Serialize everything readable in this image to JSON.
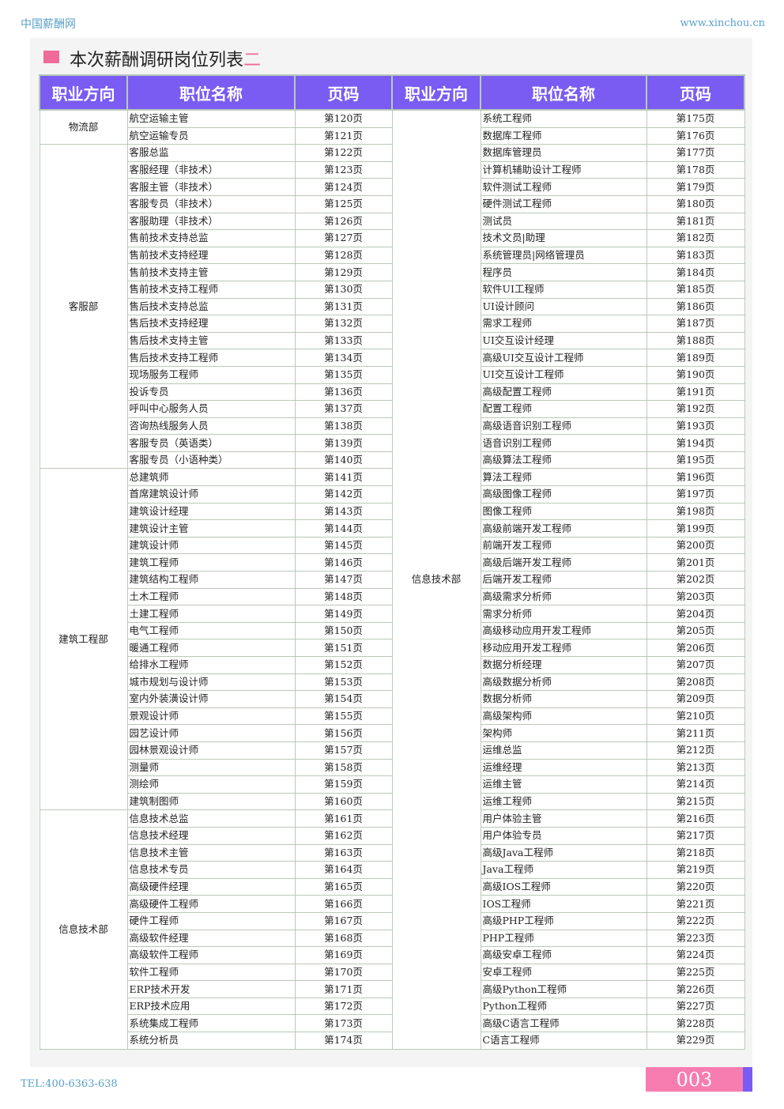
{
  "header": {
    "site": "中国薪酬网",
    "url": "www.xinchou.cn"
  },
  "title": {
    "text": "本次薪酬调研岗位列表",
    "suffix": "二"
  },
  "table": {
    "columns": [
      "职业方向",
      "职位名称",
      "页码",
      "职业方向",
      "职位名称",
      "页码"
    ],
    "left": [
      {
        "dept": "物流部",
        "rows": [
          [
            "航空运输主管",
            "第120页"
          ],
          [
            "航空运输专员",
            "第121页"
          ]
        ]
      },
      {
        "dept": "客服部",
        "rows": [
          [
            "客服总监",
            "第122页"
          ],
          [
            "客服经理（非技术）",
            "第123页"
          ],
          [
            "客服主管（非技术）",
            "第124页"
          ],
          [
            "客服专员（非技术）",
            "第125页"
          ],
          [
            "客服助理（非技术）",
            "第126页"
          ],
          [
            "售前技术支持总监",
            "第127页"
          ],
          [
            "售前技术支持经理",
            "第128页"
          ],
          [
            "售前技术支持主管",
            "第129页"
          ],
          [
            "售前技术支持工程师",
            "第130页"
          ],
          [
            "售后技术支持总监",
            "第131页"
          ],
          [
            "售后技术支持经理",
            "第132页"
          ],
          [
            "售后技术支持主管",
            "第133页"
          ],
          [
            "售后技术支持工程师",
            "第134页"
          ],
          [
            "现场服务工程师",
            "第135页"
          ],
          [
            "投诉专员",
            "第136页"
          ],
          [
            "呼叫中心服务人员",
            "第137页"
          ],
          [
            "咨询热线服务人员",
            "第138页"
          ],
          [
            "客服专员（英语类）",
            "第139页"
          ],
          [
            "客服专员（小语种类）",
            "第140页"
          ]
        ]
      },
      {
        "dept": "建筑工程部",
        "rows": [
          [
            "总建筑师",
            "第141页"
          ],
          [
            "首席建筑设计师",
            "第142页"
          ],
          [
            "建筑设计经理",
            "第143页"
          ],
          [
            "建筑设计主管",
            "第144页"
          ],
          [
            "建筑设计师",
            "第145页"
          ],
          [
            "建筑工程师",
            "第146页"
          ],
          [
            "建筑结构工程师",
            "第147页"
          ],
          [
            "土木工程师",
            "第148页"
          ],
          [
            "土建工程师",
            "第149页"
          ],
          [
            "电气工程师",
            "第150页"
          ],
          [
            "暖通工程师",
            "第151页"
          ],
          [
            "给排水工程师",
            "第152页"
          ],
          [
            "城市规划与设计师",
            "第153页"
          ],
          [
            "室内外装潢设计师",
            "第154页"
          ],
          [
            "景观设计师",
            "第155页"
          ],
          [
            "园艺设计师",
            "第156页"
          ],
          [
            "园林景观设计师",
            "第157页"
          ],
          [
            "测量师",
            "第158页"
          ],
          [
            "测绘师",
            "第159页"
          ],
          [
            "建筑制图师",
            "第160页"
          ]
        ]
      },
      {
        "dept": "信息技术部",
        "rows": [
          [
            "信息技术总监",
            "第161页"
          ],
          [
            "信息技术经理",
            "第162页"
          ],
          [
            "信息技术主管",
            "第163页"
          ],
          [
            "信息技术专员",
            "第164页"
          ],
          [
            "高级硬件经理",
            "第165页"
          ],
          [
            "高级硬件工程师",
            "第166页"
          ],
          [
            "硬件工程师",
            "第167页"
          ],
          [
            "高级软件经理",
            "第168页"
          ],
          [
            "高级软件工程师",
            "第169页"
          ],
          [
            "软件工程师",
            "第170页"
          ],
          [
            "ERP技术开发",
            "第171页"
          ],
          [
            "ERP技术应用",
            "第172页"
          ],
          [
            "系统集成工程师",
            "第173页"
          ],
          [
            "系统分析员",
            "第174页"
          ]
        ]
      }
    ],
    "right": [
      {
        "dept": "信息技术部",
        "rows": [
          [
            "系统工程师",
            "第175页"
          ],
          [
            "数据库工程师",
            "第176页"
          ],
          [
            "数据库管理员",
            "第177页"
          ],
          [
            "计算机辅助设计工程师",
            "第178页"
          ],
          [
            "软件测试工程师",
            "第179页"
          ],
          [
            "硬件测试工程师",
            "第180页"
          ],
          [
            "测试员",
            "第181页"
          ],
          [
            "技术文员|助理",
            "第182页"
          ],
          [
            "系统管理员|网络管理员",
            "第183页"
          ],
          [
            "程序员",
            "第184页"
          ],
          [
            "软件UI工程师",
            "第185页"
          ],
          [
            "UI设计顾问",
            "第186页"
          ],
          [
            "需求工程师",
            "第187页"
          ],
          [
            "UI交互设计经理",
            "第188页"
          ],
          [
            "高级UI交互设计工程师",
            "第189页"
          ],
          [
            "UI交互设计工程师",
            "第190页"
          ],
          [
            "高级配置工程师",
            "第191页"
          ],
          [
            "配置工程师",
            "第192页"
          ],
          [
            "高级语音识别工程师",
            "第193页"
          ],
          [
            "语音识别工程师",
            "第194页"
          ],
          [
            "高级算法工程师",
            "第195页"
          ],
          [
            "算法工程师",
            "第196页"
          ],
          [
            "高级图像工程师",
            "第197页"
          ],
          [
            "图像工程师",
            "第198页"
          ],
          [
            "高级前端开发工程师",
            "第199页"
          ],
          [
            "前端开发工程师",
            "第200页"
          ],
          [
            "高级后端开发工程师",
            "第201页"
          ],
          [
            "后端开发工程师",
            "第202页"
          ],
          [
            "高级需求分析师",
            "第203页"
          ],
          [
            "需求分析师",
            "第204页"
          ],
          [
            "高级移动应用开发工程师",
            "第205页"
          ],
          [
            "移动应用开发工程师",
            "第206页"
          ],
          [
            "数据分析经理",
            "第207页"
          ],
          [
            "高级数据分析师",
            "第208页"
          ],
          [
            "数据分析师",
            "第209页"
          ],
          [
            "高级架构师",
            "第210页"
          ],
          [
            "架构师",
            "第211页"
          ],
          [
            "运维总监",
            "第212页"
          ],
          [
            "运维经理",
            "第213页"
          ],
          [
            "运维主管",
            "第214页"
          ],
          [
            "运维工程师",
            "第215页"
          ],
          [
            "用户体验主管",
            "第216页"
          ],
          [
            "用户体验专员",
            "第217页"
          ],
          [
            "高级Java工程师",
            "第218页"
          ],
          [
            "Java工程师",
            "第219页"
          ],
          [
            "高级IOS工程师",
            "第220页"
          ],
          [
            "IOS工程师",
            "第221页"
          ],
          [
            "高级PHP工程师",
            "第222页"
          ],
          [
            "PHP工程师",
            "第223页"
          ],
          [
            "高级安卓工程师",
            "第224页"
          ],
          [
            "安卓工程师",
            "第225页"
          ],
          [
            "高级Python工程师",
            "第226页"
          ],
          [
            "Python工程师",
            "第227页"
          ],
          [
            "高级C语言工程师",
            "第228页"
          ],
          [
            "C语言工程师",
            "第229页"
          ]
        ]
      }
    ]
  },
  "footer": {
    "tel": "TEL:400-6363-638",
    "page": "003"
  }
}
